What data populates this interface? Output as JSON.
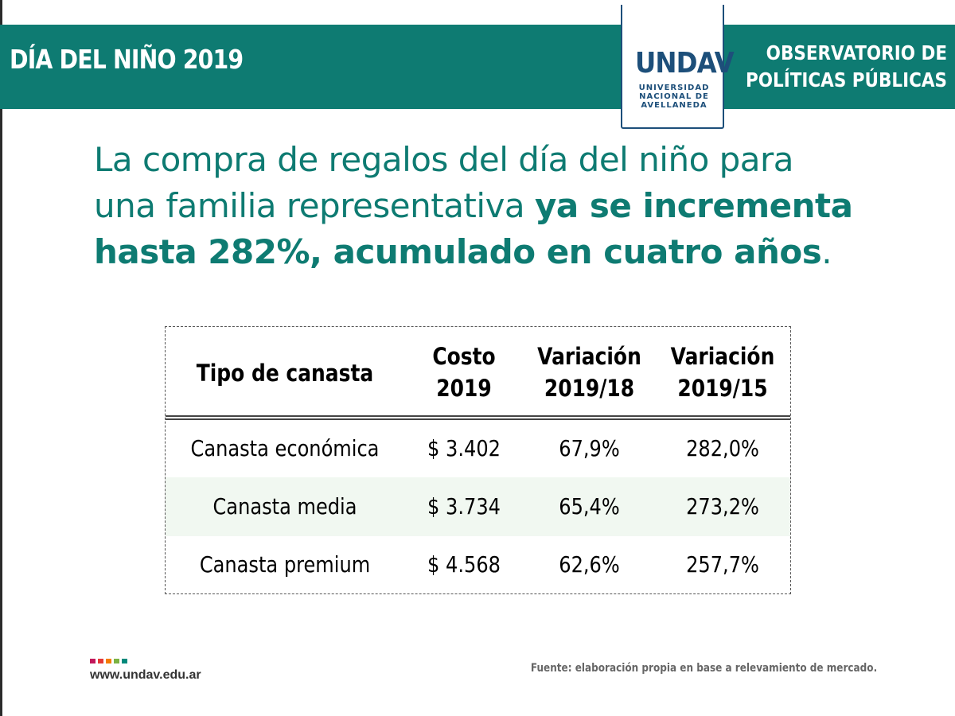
{
  "header": {
    "title": "DÍA DEL NIÑO 2019",
    "observatorio_line1": "OBSERVATORIO DE",
    "observatorio_line2": "POLÍTICAS PÚBLICAS"
  },
  "logo": {
    "mark": "UNDAV",
    "line1": "UNIVERSIDAD",
    "line2": "NACIONAL DE",
    "line3": "AVELLANEDA"
  },
  "headline": {
    "line1": "La compra de regalos del día del niño para",
    "line2_normal": "una familia representativa ",
    "line2_bold": "ya se incrementa",
    "line3_bold": "hasta 282%, acumulado en cuatro años",
    "line3_end": "."
  },
  "table": {
    "headers": [
      {
        "line1": "Tipo de canasta",
        "line2": ""
      },
      {
        "line1": "Costo",
        "line2": "2019"
      },
      {
        "line1": "Variación",
        "line2": "2019/18"
      },
      {
        "line1": "Variación",
        "line2": "2019/15"
      }
    ],
    "rows": [
      [
        "Canasta económica",
        "$ 3.402",
        "67,9%",
        "282,0%"
      ],
      [
        "Canasta media",
        "$ 3.734",
        "65,4%",
        "273,2%"
      ],
      [
        "Canasta premium",
        "$ 4.568",
        "62,6%",
        "257,7%"
      ]
    ]
  },
  "footer": {
    "website": "www.undav.edu.ar",
    "source": "Fuente: elaboración propia en base a relevamiento de mercado.",
    "dot_colors": [
      "#c2185b",
      "#e53935",
      "#f57c00",
      "#7cb342",
      "#00897b"
    ]
  },
  "colors": {
    "brand_teal": "#0e7b72",
    "logo_blue": "#1d4f7a",
    "row_alt": "#f1f8f1"
  }
}
